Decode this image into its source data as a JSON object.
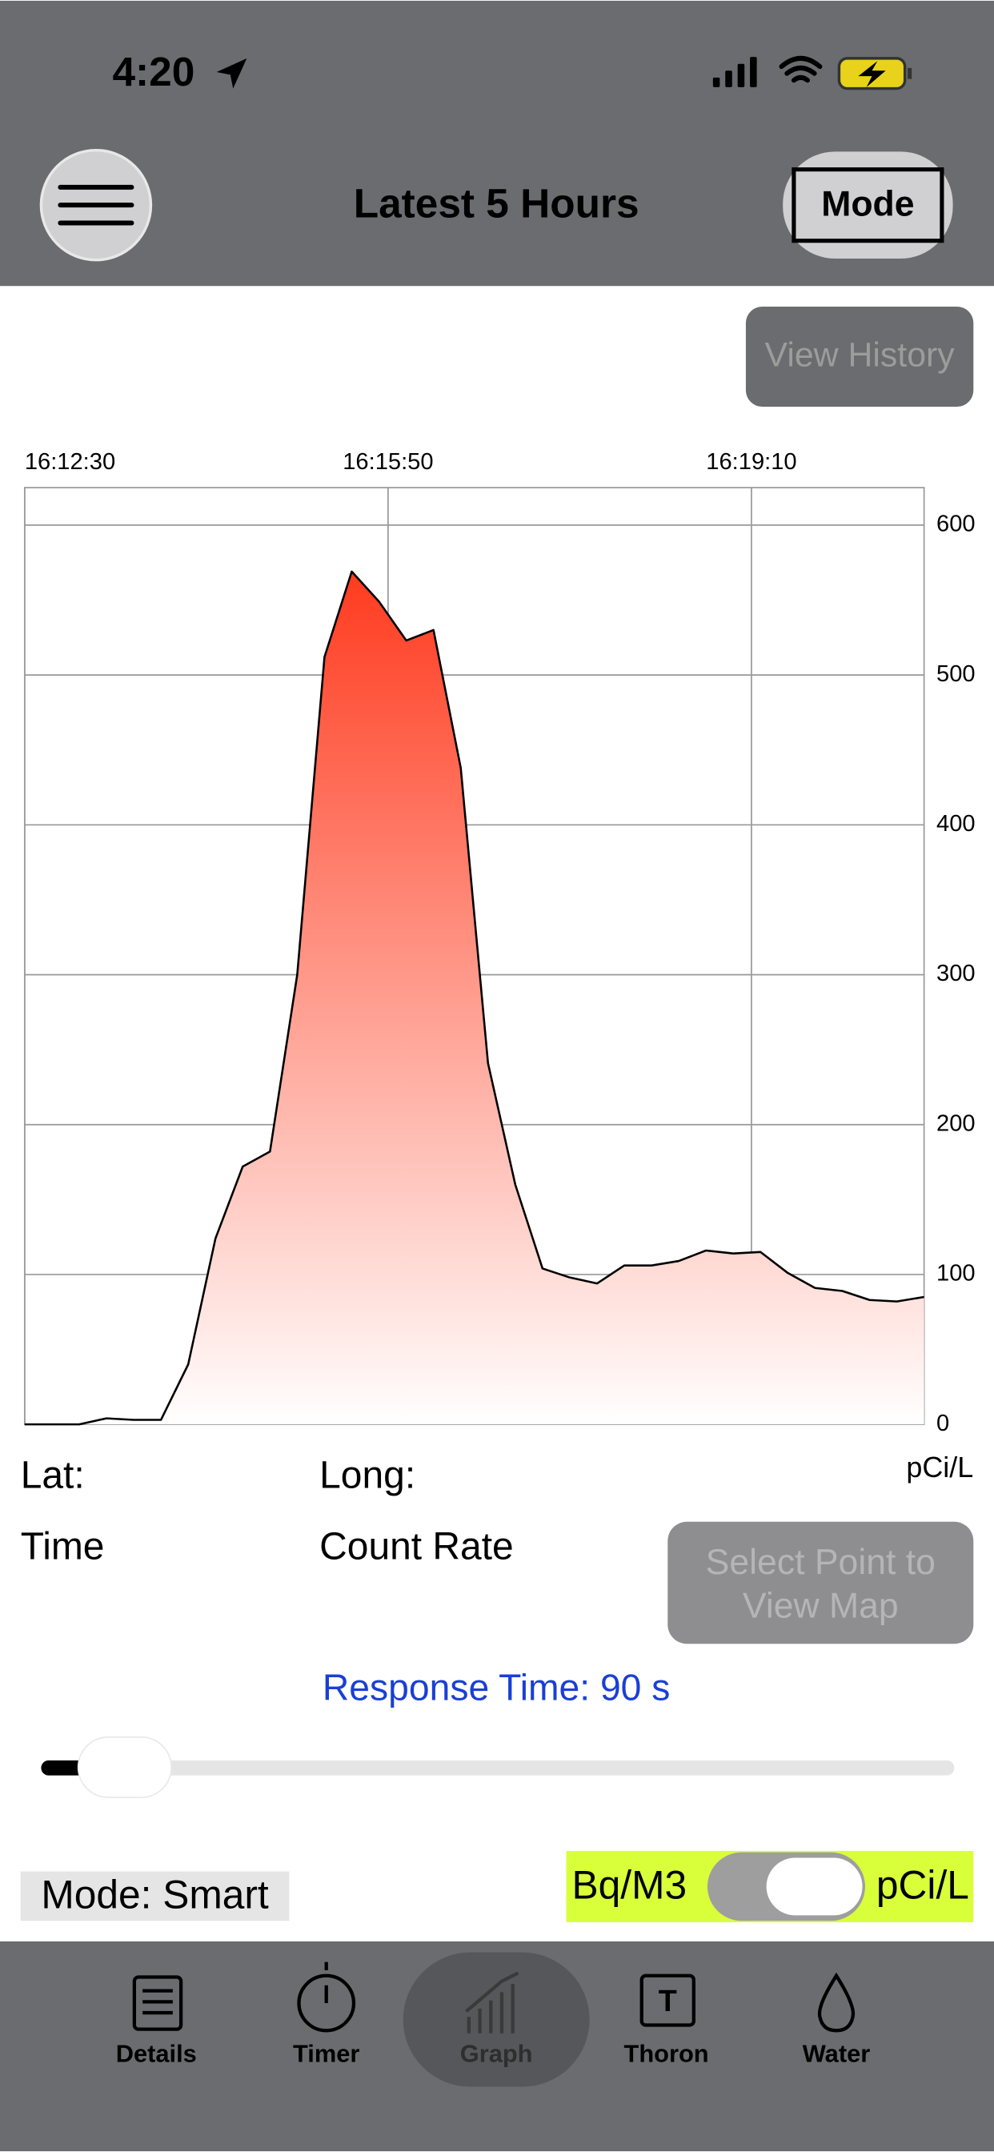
{
  "status_bar": {
    "time": "4:20"
  },
  "header": {
    "title": "Latest 5 Hours",
    "mode_button": "Mode"
  },
  "view_history": "View History",
  "chart_data": {
    "type": "line",
    "x": [
      "16:12:30",
      "16:12:45",
      "16:13:00",
      "16:13:15",
      "16:13:30",
      "16:13:45",
      "16:14:00",
      "16:14:15",
      "16:14:30",
      "16:14:45",
      "16:15:00",
      "16:15:15",
      "16:15:30",
      "16:15:45",
      "16:16:00",
      "16:16:15",
      "16:16:30",
      "16:16:45",
      "16:17:00",
      "16:17:15",
      "16:17:30",
      "16:17:45",
      "16:18:00",
      "16:18:15",
      "16:18:30",
      "16:18:45",
      "16:19:00",
      "16:19:15",
      "16:19:30",
      "16:19:45",
      "16:20:00",
      "16:20:15",
      "16:20:30",
      "16:20:45"
    ],
    "values": [
      0,
      0,
      0,
      4,
      3,
      3,
      40,
      124,
      172,
      182,
      300,
      512,
      569,
      549,
      523,
      530,
      438,
      241,
      160,
      104,
      98,
      94,
      106,
      106,
      109,
      116,
      114,
      115,
      101,
      91,
      89,
      83,
      82,
      85
    ],
    "color": "#ff3b1f",
    "xlim": [
      "16:12:30",
      "16:20:45"
    ],
    "xticks": [
      "16:12:30",
      "16:15:50",
      "16:19:10"
    ],
    "ylim": [
      0,
      625
    ],
    "yticks": [
      0,
      100,
      200,
      300,
      400,
      500,
      600
    ],
    "grid": true,
    "y_unit": "pCi/L"
  },
  "info": {
    "lat": "Lat:",
    "long": "Long:",
    "time": "Time",
    "count_rate": "Count Rate",
    "map_button": "Select Point to View Map"
  },
  "response_time": "Response Time: 90 s",
  "mode_label": "Mode: Smart",
  "unit_toggle": {
    "left": "Bq/M3",
    "right": "pCi/L"
  },
  "tabs": [
    "Details",
    "Timer",
    "Graph",
    "Thoron",
    "Water"
  ]
}
